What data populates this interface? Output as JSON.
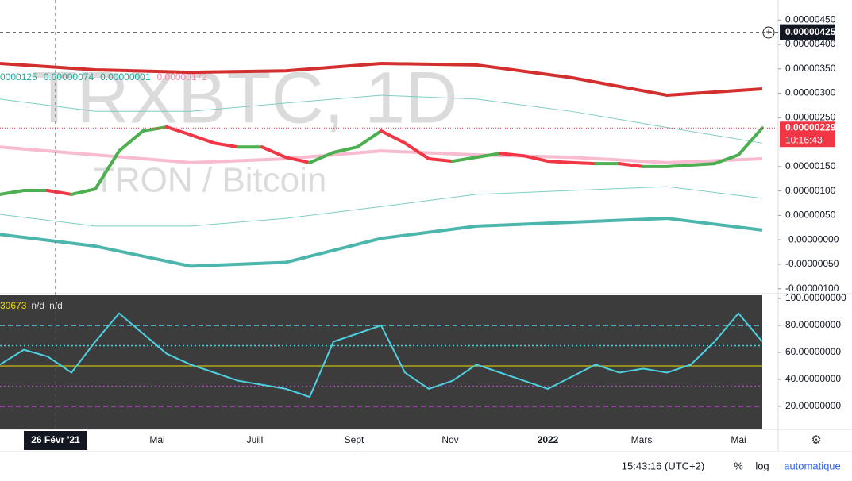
{
  "price_pane": {
    "watermark": "TRXBTC, 1D",
    "subtitle": "TRON / Bitcoin",
    "legend": [
      "0000125",
      "0.00000074",
      "0.00000001",
      "0.00000172"
    ],
    "ylim": [
      -1.07e-06,
      4.91e-06
    ],
    "yticks": [
      {
        "value": 4.5e-06,
        "label": "0.00000450"
      },
      {
        "value": 4e-06,
        "label": "0.00000400"
      },
      {
        "value": 3.5e-06,
        "label": "0.00000350"
      },
      {
        "value": 3e-06,
        "label": "0.00000300"
      },
      {
        "value": 2.5e-06,
        "label": "0.00000250"
      },
      {
        "value": 1.5e-06,
        "label": "0.00000150"
      },
      {
        "value": 1e-06,
        "label": "0.00000100"
      },
      {
        "value": 5e-07,
        "label": "0.00000050"
      },
      {
        "value": 0,
        "label": "-0.00000000"
      },
      {
        "value": -5e-07,
        "label": "-0.00000050"
      },
      {
        "value": -1e-06,
        "label": "-0.00000100"
      }
    ],
    "bands": [
      {
        "color": "#d32f2f",
        "line_width": 4,
        "values": [
          3.61e-06,
          3.48e-06,
          3.43e-06,
          3.46e-06,
          3.61e-06,
          3.58e-06,
          3.32e-06,
          2.96e-06,
          3.09e-06
        ]
      },
      {
        "color": "#4db6ac",
        "line_width": 4,
        "values": [
          1.1e-07,
          -1.3e-07,
          -5.4e-07,
          -4.6e-07,
          3e-08,
          2.8e-07,
          3.6e-07,
          4.4e-07,
          2e-07
        ]
      },
      {
        "color": "#f8bbd0",
        "line_width": 4,
        "values": [
          1.9e-06,
          1.74e-06,
          1.58e-06,
          1.66e-06,
          1.82e-06,
          1.74e-06,
          1.69e-06,
          1.58e-06,
          1.66e-06
        ]
      },
      {
        "color": "#80cbc4",
        "line_width": 1,
        "values": [
          2.88e-06,
          2.63e-06,
          2.63e-06,
          2.8e-06,
          2.96e-06,
          2.88e-06,
          2.63e-06,
          2.3e-06,
          1.98e-06
        ]
      },
      {
        "color": "#80cbc4",
        "line_width": 1,
        "values": [
          5.2e-07,
          2.8e-07,
          2.8e-07,
          4.4e-07,
          6.8e-07,
          9.3e-07,
          1.01e-06,
          1.09e-06,
          8.5e-07
        ]
      }
    ],
    "price": {
      "up_color": "#4caf50",
      "down_color": "#f23645",
      "values": [
        9.3e-07,
        1.01e-06,
        1.01e-06,
        9.3e-07,
        1.04e-06,
        1.82e-06,
        2.23e-06,
        2.31e-06,
        2.15e-06,
        1.98e-06,
        1.9e-06,
        1.9e-06,
        1.69e-06,
        1.58e-06,
        1.79e-06,
        1.9e-06,
        2.23e-06,
        1.98e-06,
        1.66e-06,
        1.61e-06,
        1.69e-06,
        1.77e-06,
        1.72e-06,
        1.61e-06,
        1.58e-06,
        1.56e-06,
        1.56e-06,
        1.5e-06,
        1.5e-06,
        1.53e-06,
        1.56e-06,
        1.74e-06,
        2.29e-06
      ]
    },
    "last_price": {
      "value": 2.29e-06,
      "label": "0.00000229"
    },
    "countdown": "10:16:43",
    "crosshair": {
      "value": 4.25e-06,
      "label": "0.00000425"
    }
  },
  "rsi_pane": {
    "legend": [
      "30673",
      "n/d",
      "n/d"
    ],
    "ylim": [
      3.5,
      102.4
    ],
    "yticks": [
      {
        "value": 100,
        "label": "100.00000000"
      },
      {
        "value": 80,
        "label": "80.00000000"
      },
      {
        "value": 60,
        "label": "60.00000000"
      },
      {
        "value": 40,
        "label": "40.00000000"
      },
      {
        "value": 20,
        "label": "20.00000000"
      }
    ],
    "levels": [
      80,
      65,
      50,
      35,
      20
    ],
    "color": "#4dd0e1",
    "values": [
      51,
      62,
      57,
      45,
      68,
      89,
      74,
      59,
      51,
      45,
      39,
      36,
      33,
      27,
      68,
      74,
      80,
      45,
      33,
      39,
      51,
      45,
      39,
      33,
      42,
      51,
      45,
      48,
      45,
      51,
      68,
      89,
      68
    ]
  },
  "time_axis": {
    "highlight": "26 Févr '21",
    "labels": [
      "Mai",
      "Juill",
      "Sept",
      "Nov",
      "2022",
      "Mars",
      "Mai"
    ]
  },
  "status_bar": {
    "time": "15:43:16 (UTC+2)",
    "percent": "%",
    "log": "log",
    "scale": "automatique"
  }
}
